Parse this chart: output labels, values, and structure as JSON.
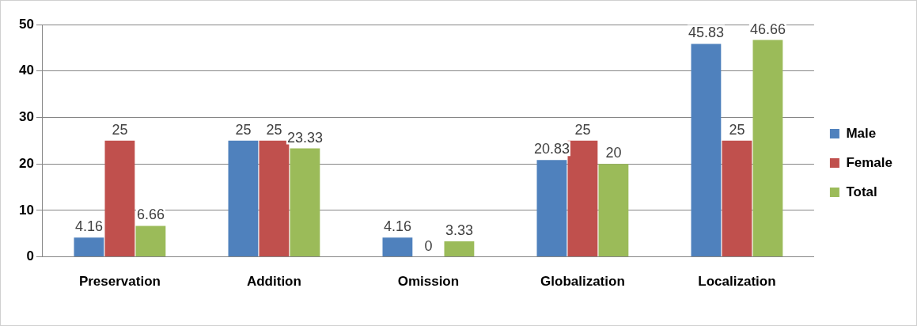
{
  "chart_data": {
    "type": "bar",
    "categories": [
      "Preservation",
      "Addition",
      "Omission",
      "Globalization",
      "Localization"
    ],
    "series": [
      {
        "name": "Male",
        "color": "#4f81bd",
        "values": [
          4.16,
          25,
          4.16,
          20.83,
          45.83
        ]
      },
      {
        "name": "Female",
        "color": "#c0504d",
        "values": [
          25,
          25,
          0,
          25,
          25
        ]
      },
      {
        "name": "Total",
        "color": "#9bbb59",
        "values": [
          6.66,
          23.33,
          3.33,
          20,
          46.66
        ]
      }
    ],
    "ylim": [
      0,
      50
    ],
    "yticks": [
      0,
      10,
      20,
      30,
      40,
      50
    ],
    "grid": "y",
    "legend": "right",
    "data_labels": true
  }
}
